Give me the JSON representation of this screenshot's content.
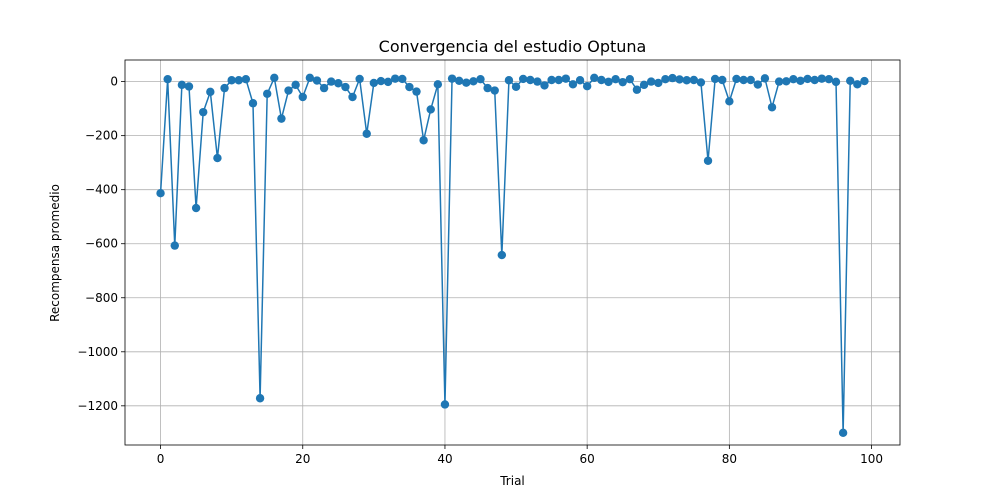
{
  "chart_data": {
    "type": "line",
    "title": "Convergencia del estudio Optuna",
    "xlabel": "Trial",
    "ylabel": "Recompensa promedio",
    "xlim": [
      -5,
      104
    ],
    "ylim": [
      -1345,
      80
    ],
    "xticks": [
      0,
      20,
      40,
      60,
      80,
      100
    ],
    "yticks": [
      -1200,
      -1000,
      -800,
      -600,
      -400,
      -200,
      0
    ],
    "grid": true,
    "marker": "circle",
    "color": "#1f77b4",
    "series": [
      {
        "x": [
          0,
          1,
          2,
          3,
          4,
          5,
          6,
          7,
          8,
          9,
          10,
          11,
          12,
          13,
          14,
          15,
          16,
          17,
          18,
          19,
          20,
          21,
          22,
          23,
          24,
          25,
          26,
          27,
          28,
          29,
          30,
          31,
          32,
          33,
          34,
          35,
          36,
          37,
          38,
          39,
          40,
          41,
          42,
          43,
          44,
          45,
          46,
          47,
          48,
          49,
          50,
          51,
          52,
          53,
          54,
          55,
          56,
          57,
          58,
          59,
          60,
          61,
          62,
          63,
          64,
          65,
          66,
          67,
          68,
          69,
          70,
          71,
          72,
          73,
          74,
          75,
          76,
          77,
          78,
          79,
          80,
          81,
          82,
          83,
          84,
          85,
          86,
          87,
          88,
          89,
          90,
          91,
          92,
          93,
          94,
          95,
          96,
          97,
          98,
          99
        ],
        "y": [
          -413,
          9,
          -607,
          -12,
          -18,
          -468,
          -113,
          -38,
          -283,
          -24,
          5,
          5,
          9,
          -80,
          -1172,
          -45,
          14,
          -137,
          -33,
          -12,
          -57,
          14,
          4,
          -24,
          0,
          -6,
          -20,
          -57,
          10,
          -193,
          -5,
          2,
          -1,
          11,
          10,
          -20,
          -37,
          -217,
          -103,
          -10,
          -1195,
          11,
          3,
          -4,
          1,
          9,
          -24,
          -33,
          -642,
          5,
          -19,
          10,
          6,
          0,
          -14,
          6,
          6,
          11,
          -10,
          5,
          -17,
          14,
          6,
          -1,
          9,
          -2,
          9,
          -30,
          -12,
          0,
          -5,
          9,
          13,
          8,
          5,
          6,
          -3,
          -293,
          10,
          6,
          -73,
          10,
          6,
          6,
          -11,
          12,
          -95,
          0,
          1,
          9,
          3,
          10,
          6,
          11,
          9,
          -1,
          -1300,
          3,
          -10,
          2
        ]
      }
    ]
  }
}
